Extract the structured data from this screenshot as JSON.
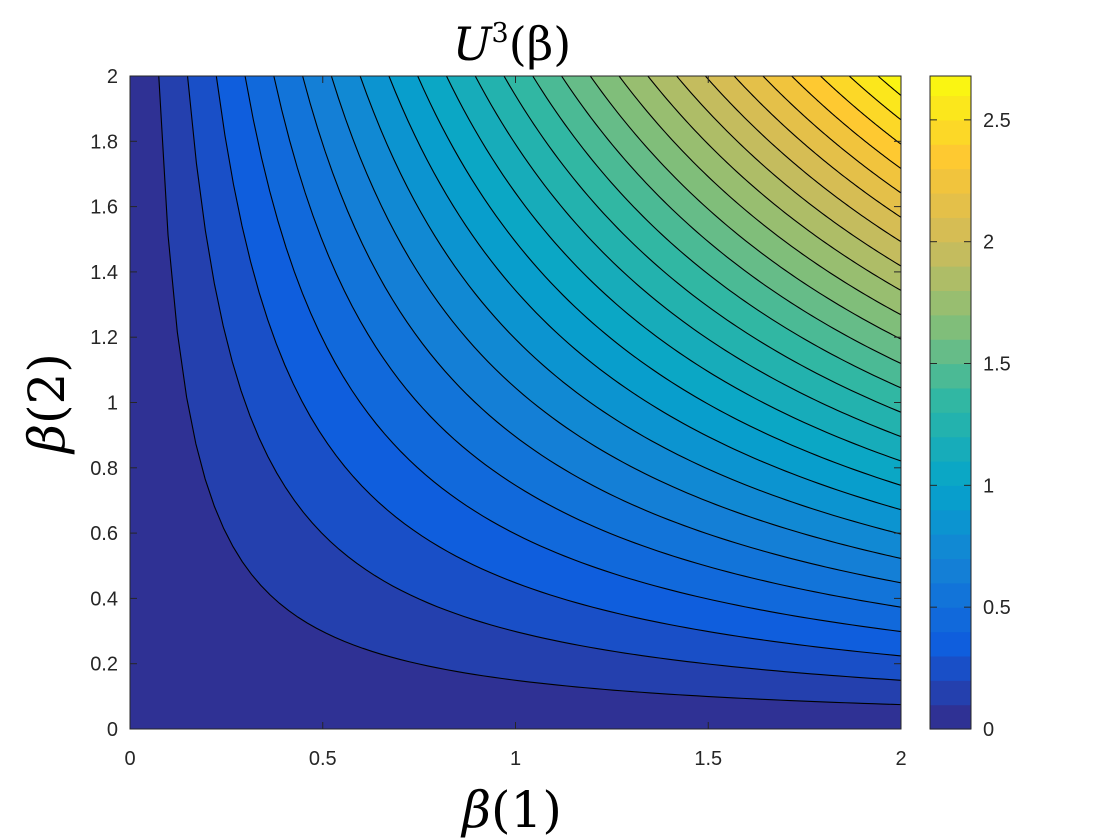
{
  "chart_data": {
    "type": "heatmap",
    "subtype": "filled-contour",
    "title": {
      "base": "U",
      "superscript": "3",
      "argument": "(β)"
    },
    "xlabel": {
      "symbol": "β",
      "index": "(1)"
    },
    "ylabel": {
      "symbol": "β",
      "index": "(2)"
    },
    "xlim": [
      0,
      2
    ],
    "ylim": [
      0,
      2
    ],
    "x_ticks": [
      0,
      0.5,
      1,
      1.5,
      2
    ],
    "x_tick_labels": [
      "0",
      "0.5",
      "1",
      "1.5",
      "2"
    ],
    "y_ticks": [
      0,
      0.2,
      0.4,
      0.6,
      0.8,
      1,
      1.2,
      1.4,
      1.6,
      1.8,
      2
    ],
    "y_tick_labels": [
      "0",
      "0.2",
      "0.4",
      "0.6",
      "0.8",
      "1",
      "1.2",
      "1.4",
      "1.6",
      "1.8",
      "2"
    ],
    "surface": "z ≈ 0.67 · β(1) · β(2)",
    "z_range": [
      0,
      2.68
    ],
    "contour_levels": [
      0.1,
      0.2,
      0.3,
      0.4,
      0.5,
      0.6,
      0.7,
      0.8,
      0.9,
      1.0,
      1.1,
      1.2,
      1.3,
      1.4,
      1.5,
      1.6,
      1.7,
      1.8,
      1.9,
      2.0,
      2.1,
      2.2,
      2.3,
      2.4,
      2.5,
      2.6
    ],
    "contour_line_color": "#000000",
    "colormap": "parula",
    "colormap_stops": [
      "#352a87",
      "#0f5cdd",
      "#1481d6",
      "#06a4ca",
      "#2eb7a4",
      "#87bf77",
      "#d1bb59",
      "#fec832",
      "#f9fb0e"
    ],
    "colorbar": {
      "location": "right",
      "limits": [
        0,
        2.68
      ],
      "ticks": [
        0,
        0.5,
        1,
        1.5,
        2,
        2.5
      ],
      "tick_labels": [
        "0",
        "0.5",
        "1",
        "1.5",
        "2",
        "2.5"
      ]
    },
    "grid": false
  }
}
